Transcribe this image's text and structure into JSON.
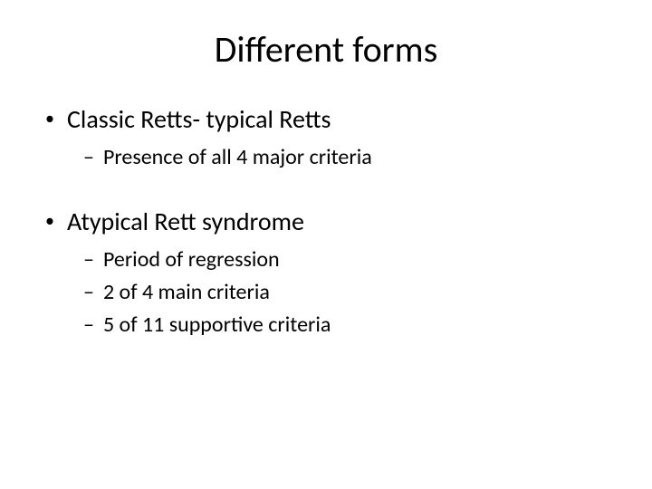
{
  "title": "Different forms",
  "item1": {
    "label": "Classic Retts- typical Retts",
    "sub1": "Presence of all 4 major criteria"
  },
  "item2": {
    "label": "Atypical Rett syndrome",
    "sub1": "Period of regression",
    "sub2": "2 of 4 main criteria",
    "sub3": "5 of 11 supportive criteria"
  },
  "markers": {
    "l1": "•",
    "l2": "–"
  }
}
